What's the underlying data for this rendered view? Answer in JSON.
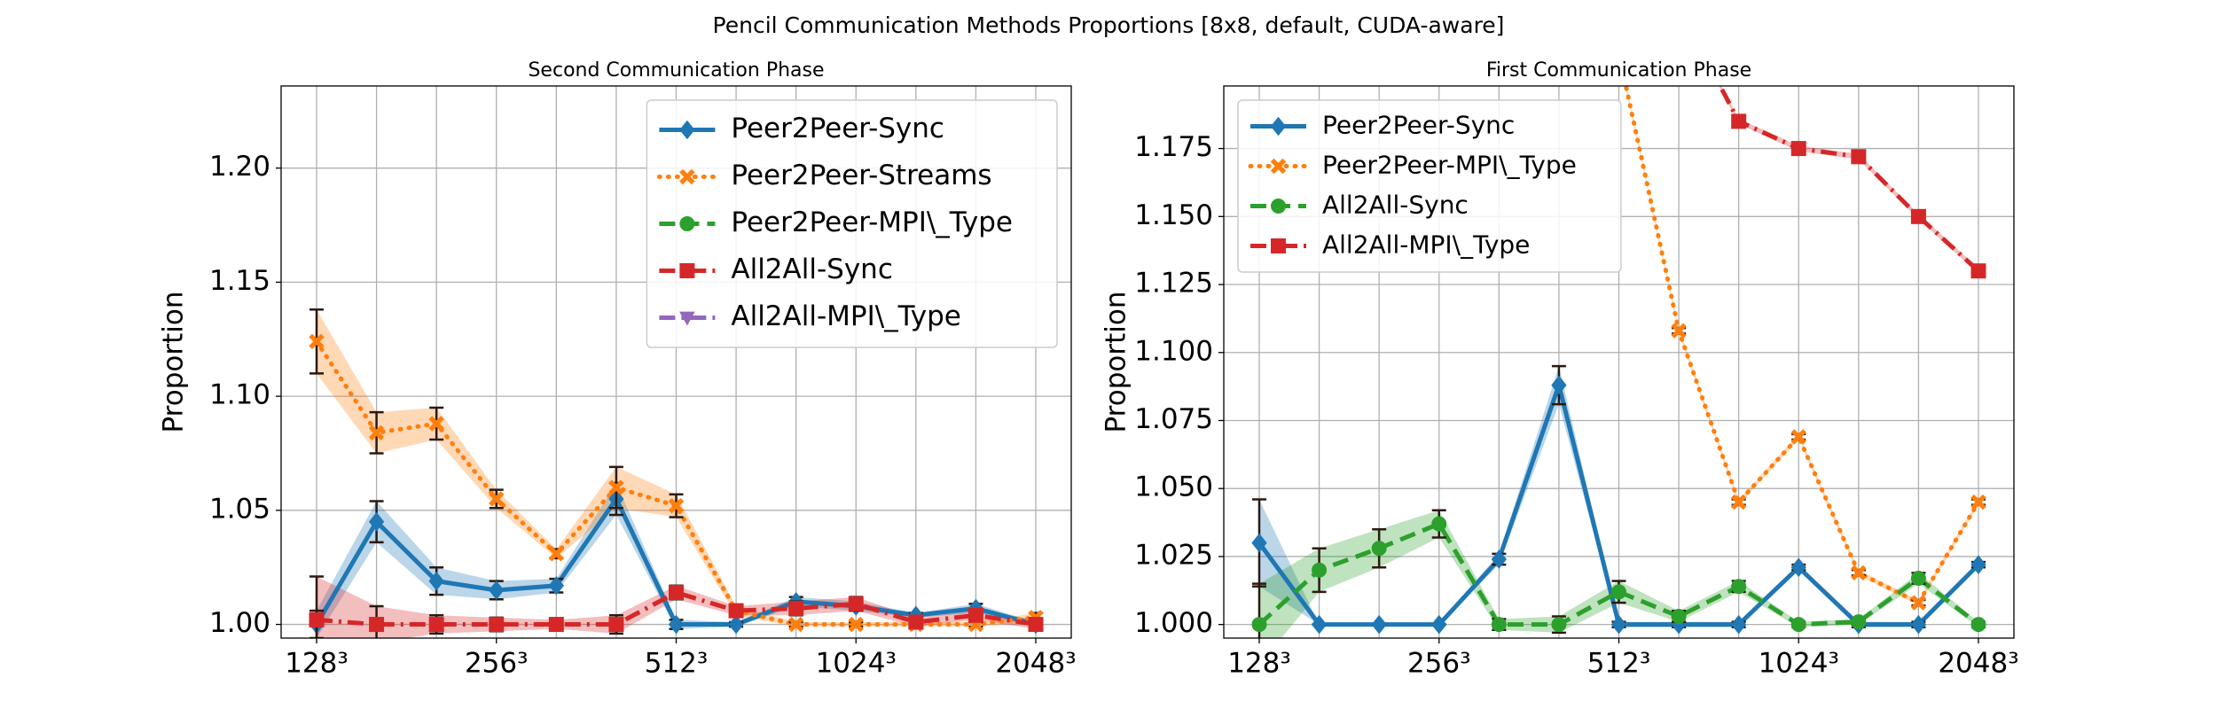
{
  "title": "Pencil Communication Methods Proportions [8x8, default, CUDA-aware]",
  "chart_data": [
    {
      "type": "line",
      "title": "Second Communication Phase",
      "y_label": "Proportion",
      "categories": [
        "128³",
        null,
        null,
        "256³",
        null,
        null,
        "512³",
        null,
        null,
        "1024³",
        null,
        null,
        "2048³"
      ],
      "ylim": [
        0.994,
        1.236
      ],
      "yticks": [
        {
          "value": 1.0,
          "label": "1.00"
        },
        1.05,
        {
          "value": 1.1,
          "label": "1.10"
        },
        1.15,
        {
          "value": 1.2,
          "label": "1.20"
        }
      ],
      "grid": true,
      "legend": "upper right",
      "series": [
        {
          "name": "Peer2Peer-Sync",
          "color": "#1f77b4",
          "linestyle": "solid",
          "marker": "D",
          "values": [
            1.0,
            1.045,
            1.019,
            1.015,
            1.017,
            1.055,
            1.0,
            1.0,
            1.01,
            1.008,
            1.004,
            1.007,
            1.0
          ],
          "errors": [
            0.006,
            0.009,
            0.006,
            0.004,
            0.003,
            0.007,
            0.002,
            0.001,
            0.002,
            0.002,
            0.001,
            0.002,
            0.001
          ]
        },
        {
          "name": "Peer2Peer-Streams",
          "color": "#ff7f0e",
          "linestyle": "dotted",
          "marker": "X",
          "values": [
            1.124,
            1.084,
            1.088,
            1.055,
            1.031,
            1.06,
            1.052,
            1.006,
            1.0,
            1.0,
            1.0,
            1.0,
            1.003
          ],
          "errors": [
            0.014,
            0.009,
            0.007,
            0.004,
            0.002,
            0.009,
            0.005,
            0.002,
            0.001,
            0.001,
            0.001,
            0.001,
            0.002
          ]
        },
        {
          "name": "Peer2Peer-MPI\\_Type",
          "color": "#2ca02c",
          "linestyle": "dashed",
          "marker": "o",
          "values": [
            null,
            null,
            null,
            null,
            null,
            null,
            null,
            null,
            null,
            null,
            null,
            null,
            null
          ],
          "errors": [
            null,
            null,
            null,
            null,
            null,
            null,
            null,
            null,
            null,
            null,
            null,
            null,
            null
          ]
        },
        {
          "name": "All2All-Sync",
          "color": "#d62728",
          "linestyle": "dashdot",
          "marker": "s",
          "values": [
            1.002,
            1.0,
            1.0,
            1.0,
            1.0,
            1.0,
            1.014,
            1.006,
            1.007,
            1.009,
            1.001,
            1.004,
            1.0
          ],
          "errors": [
            0.019,
            0.008,
            0.004,
            0.003,
            0.002,
            0.004,
            0.003,
            0.002,
            0.003,
            0.003,
            0.002,
            0.002,
            0.002
          ]
        },
        {
          "name": "All2All-MPI\\_Type",
          "color": "#9467bd",
          "linestyle": "dashdot",
          "marker": "v",
          "values": [
            null,
            null,
            null,
            null,
            null,
            null,
            null,
            null,
            null,
            null,
            null,
            null,
            null
          ],
          "errors": [
            null,
            null,
            null,
            null,
            null,
            null,
            null,
            null,
            null,
            null,
            null,
            null,
            null
          ]
        }
      ]
    },
    {
      "type": "line",
      "title": "First Communication Phase",
      "y_label": "Proportion",
      "categories": [
        "128³",
        null,
        null,
        "256³",
        null,
        null,
        "512³",
        null,
        null,
        "1024³",
        null,
        null,
        "2048³"
      ],
      "ylim": [
        0.995,
        1.198
      ],
      "yticks": [
        {
          "value": 1.0,
          "label": "1.000"
        },
        1.025,
        {
          "value": 1.05,
          "label": "1.050"
        },
        1.075,
        {
          "value": 1.1,
          "label": "1.100"
        },
        1.125,
        {
          "value": 1.15,
          "label": "1.150"
        },
        1.175
      ],
      "grid": true,
      "legend": "upper left",
      "series": [
        {
          "name": "Peer2Peer-Sync",
          "color": "#1f77b4",
          "linestyle": "solid",
          "marker": "D",
          "values": [
            1.03,
            1.0,
            1.0,
            1.0,
            1.024,
            1.088,
            1.0,
            1.0,
            1.0,
            1.021,
            1.0,
            1.0,
            1.022
          ],
          "errors": [
            0.016,
            0.0,
            0.0,
            0.0,
            0.002,
            0.007,
            0.001,
            0.001,
            0.001,
            0.001,
            0.001,
            0.001,
            0.001
          ]
        },
        {
          "name": "Peer2Peer-MPI\\_Type",
          "color": "#ff7f0e",
          "linestyle": "dotted",
          "marker": "X",
          "values": [
            null,
            null,
            null,
            null,
            null,
            null,
            1.21,
            1.108,
            1.045,
            1.069,
            1.019,
            1.008,
            1.045
          ],
          "errors": [
            null,
            null,
            null,
            null,
            null,
            null,
            0.001,
            0.001,
            0.001,
            0.001,
            0.001,
            0.001,
            0.001
          ]
        },
        {
          "name": "All2All-Sync",
          "color": "#2ca02c",
          "linestyle": "dashed",
          "marker": "o",
          "values": [
            1.0,
            1.02,
            1.028,
            1.037,
            1.0,
            1.0,
            1.012,
            1.003,
            1.014,
            1.0,
            1.001,
            1.017,
            1.0
          ],
          "errors": [
            0.015,
            0.008,
            0.007,
            0.005,
            0.002,
            0.003,
            0.004,
            0.002,
            0.002,
            0.001,
            0.001,
            0.002,
            0.001
          ]
        },
        {
          "name": "All2All-MPI\\_Type",
          "color": "#d62728",
          "linestyle": "dashdot",
          "marker": "s",
          "values": [
            null,
            null,
            null,
            null,
            null,
            null,
            null,
            1.227,
            1.185,
            1.175,
            1.172,
            1.15,
            1.13
          ],
          "errors": [
            null,
            null,
            null,
            null,
            null,
            null,
            null,
            0.001,
            0.001,
            0.001,
            0.001,
            0.001,
            0.001
          ]
        }
      ]
    }
  ]
}
